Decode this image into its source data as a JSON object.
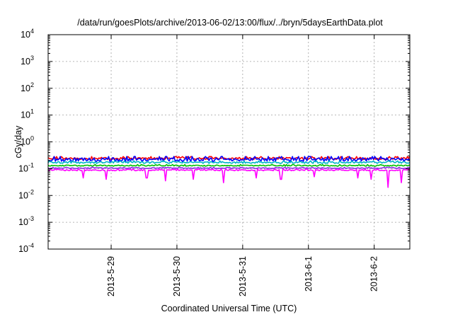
{
  "chart_data": {
    "type": "line",
    "title": "/data/run/goesPlots/archive/2013-06-02/13:00/flux/../bryn/5daysEarthData.plot",
    "xlabel": "Coordinated Universal Time (UTC)",
    "ylabel": "cGy/day",
    "yscale": "log",
    "ylim": [
      0.0001,
      10000
    ],
    "xlim": [
      "2013-05-28 01:00",
      "2013-06-02 13:00"
    ],
    "grid": true,
    "x_ticks": [
      {
        "label": "2013-5-29",
        "value": "2013-05-29 00:00"
      },
      {
        "label": "2013-5-30",
        "value": "2013-05-30 00:00"
      },
      {
        "label": "2013-5-31",
        "value": "2013-05-31 00:00"
      },
      {
        "label": "2013-6-1",
        "value": "2013-06-01 00:00"
      },
      {
        "label": "2013-6-2",
        "value": "2013-06-02 00:00"
      }
    ],
    "y_ticks": [
      {
        "base": "10",
        "exp": "-4",
        "value": 0.0001
      },
      {
        "base": "10",
        "exp": "-3",
        "value": 0.001
      },
      {
        "base": "10",
        "exp": "-2",
        "value": 0.01
      },
      {
        "base": "10",
        "exp": "-1",
        "value": 0.1
      },
      {
        "base": "10",
        "exp": "0",
        "value": 1
      },
      {
        "base": "10",
        "exp": "1",
        "value": 10
      },
      {
        "base": "10",
        "exp": "2",
        "value": 100
      },
      {
        "base": "10",
        "exp": "3",
        "value": 1000
      },
      {
        "base": "10",
        "exp": "4",
        "value": 10000
      }
    ],
    "series": [
      {
        "color": "#ff0000",
        "level": 0.24,
        "spread": 0.1,
        "dips": [],
        "points": 300
      },
      {
        "color": "#0000ff",
        "level": 0.22,
        "spread": 0.16,
        "dips": [],
        "points": 300
      },
      {
        "color": "#00b4c8",
        "level": 0.17,
        "spread": 0.08,
        "dips": [],
        "points": 300
      },
      {
        "color": "#00c000",
        "level": 0.13,
        "spread": 0.05,
        "dips": [],
        "points": 300
      },
      {
        "color": "#8a2be2",
        "level": 0.105,
        "spread": 0.04,
        "dips": [],
        "points": 300
      },
      {
        "color": "#ff00ff",
        "level": 0.088,
        "spread": 0.05,
        "points": 300,
        "dips": [
          {
            "t": "2013-05-28 14:00",
            "v": 0.045
          },
          {
            "t": "2013-05-28 22:00",
            "v": 0.04
          },
          {
            "t": "2013-05-29 13:00",
            "v": 0.045
          },
          {
            "t": "2013-05-29 20:00",
            "v": 0.035
          },
          {
            "t": "2013-05-30 06:00",
            "v": 0.04
          },
          {
            "t": "2013-05-30 17:00",
            "v": 0.03
          },
          {
            "t": "2013-05-31 05:00",
            "v": 0.045
          },
          {
            "t": "2013-05-31 14:00",
            "v": 0.04
          },
          {
            "t": "2013-06-01 02:00",
            "v": 0.05
          },
          {
            "t": "2013-06-01 18:00",
            "v": 0.045
          },
          {
            "t": "2013-06-01 23:00",
            "v": 0.04
          },
          {
            "t": "2013-06-02 05:00",
            "v": 0.02
          },
          {
            "t": "2013-06-02 10:00",
            "v": 0.03
          }
        ]
      }
    ]
  }
}
